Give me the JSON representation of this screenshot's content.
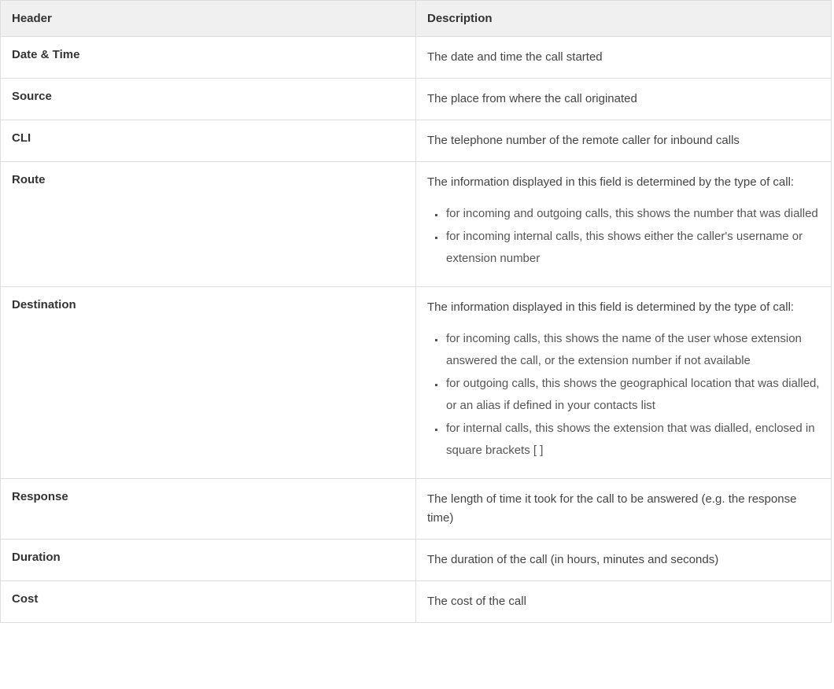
{
  "columns": [
    "Header",
    "Description"
  ],
  "rows": [
    {
      "header": "Date & Time",
      "intro": "The date and time the call started",
      "items": []
    },
    {
      "header": "Source",
      "intro": "The place from where the call originated",
      "items": []
    },
    {
      "header": "CLI",
      "intro": "The telephone number of the remote caller for inbound calls",
      "items": []
    },
    {
      "header": "Route",
      "intro": "The information displayed in this field is determined by the type of call:",
      "items": [
        "for incoming and outgoing calls, this shows the number that was dialled",
        "for incoming internal calls, this shows either the caller's username or extension number"
      ]
    },
    {
      "header": "Destination",
      "intro": "The information displayed in this field is determined by the type of call:",
      "items": [
        "for incoming calls, this shows the name of the user whose extension answered the call, or the extension number if not available",
        "for outgoing calls, this shows the geographical location that was dialled, or an alias if defined in your contacts list",
        "for internal calls, this shows the extension that was dialled, enclosed in square brackets [ ]"
      ]
    },
    {
      "header": "Response",
      "intro": "The length of time it took for the call to be answered (e.g. the response time)",
      "items": []
    },
    {
      "header": "Duration",
      "intro": "The duration of the call (in hours, minutes and seconds)",
      "items": []
    },
    {
      "header": "Cost",
      "intro": "The cost of the call",
      "items": []
    }
  ]
}
